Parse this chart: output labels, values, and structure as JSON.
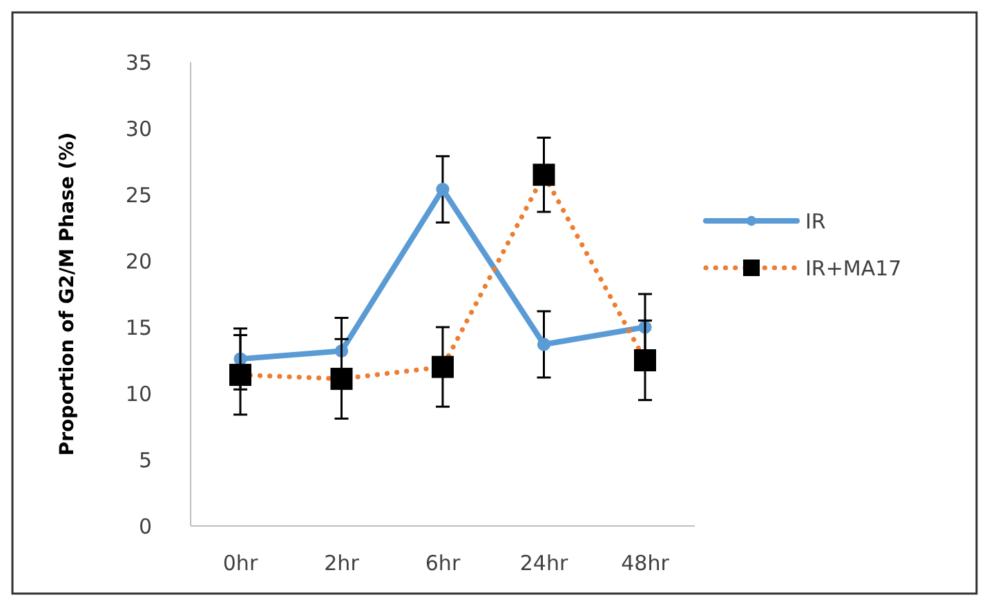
{
  "chart_data": {
    "type": "line",
    "ylabel": "Proportion of G2/M Phase (%)",
    "categories": [
      "0hr",
      "2hr",
      "6hr",
      "24hr",
      "48hr"
    ],
    "series": [
      {
        "name": "IR",
        "color": "#5b9bd5",
        "values": [
          12.6,
          13.2,
          25.4,
          13.7,
          15.0
        ],
        "errors": [
          2.3,
          2.5,
          2.5,
          2.5,
          2.5
        ],
        "marker": "circle",
        "line_style": "solid"
      },
      {
        "name": "IR+MA17",
        "color": "#ed7d31",
        "colors": [
          "#000000",
          "#000000",
          "#000000",
          "#000000",
          "#000000"
        ],
        "values": [
          11.4,
          11.1,
          12.0,
          26.5,
          12.5
        ],
        "errors": [
          3,
          3,
          3,
          2.8,
          3
        ],
        "marker": "square",
        "line_style": "dotted"
      }
    ],
    "ylim": [
      0,
      35
    ],
    "yticks": [
      0,
      5,
      10,
      15,
      20,
      25,
      30,
      35
    ],
    "grid": false,
    "legend": "right"
  }
}
